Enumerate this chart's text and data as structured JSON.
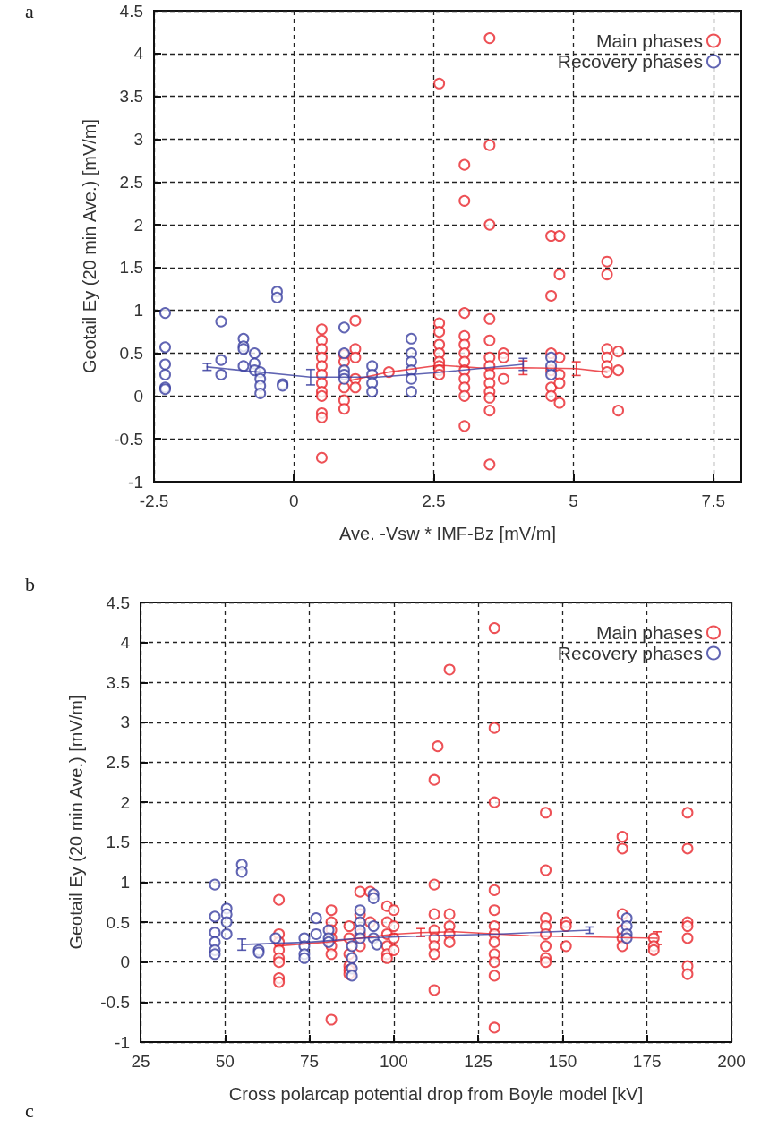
{
  "chart_data": [
    {
      "type": "scatter",
      "xlabel": "Ave. -Vsw * IMF-Bz [mV/m]",
      "ylabel": "Geotail Ey (20 min Ave.) [mV/m]",
      "annotations": [
        "a"
      ],
      "xlim": [
        -2.5,
        8
      ],
      "xticks": [
        -2.5,
        0,
        2.5,
        5,
        7.5
      ],
      "ylim": [
        -1,
        4.5
      ],
      "yticks": [
        -1,
        -0.5,
        0,
        0.5,
        1,
        1.5,
        2,
        2.5,
        3,
        3.5,
        4,
        4.5
      ],
      "grid": true,
      "legend": "top right",
      "marker": "circle",
      "series": [
        {
          "name": "Main phases",
          "color": "#e8262c",
          "x": [
            0.5,
            0.5,
            0.5,
            0.5,
            0.5,
            0.5,
            0.5,
            0.5,
            0.5,
            0.5,
            0.5,
            0.5,
            0.9,
            0.9,
            0.9,
            0.9,
            0.9,
            1.1,
            1.1,
            1.1,
            1.1,
            1.1,
            1.7,
            2.6,
            2.6,
            2.6,
            2.6,
            2.6,
            2.6,
            2.6,
            2.6,
            2.6,
            3.05,
            3.05,
            3.05,
            3.05,
            3.05,
            3.05,
            3.05,
            3.05,
            3.05,
            3.05,
            3.05,
            3.05,
            3.5,
            3.5,
            3.5,
            3.5,
            3.5,
            3.5,
            3.5,
            3.5,
            3.5,
            3.5,
            3.5,
            3.5,
            3.5,
            3.75,
            3.75,
            3.75,
            4.6,
            4.6,
            4.6,
            4.6,
            4.6,
            4.6,
            4.75,
            4.75,
            4.75,
            4.75,
            4.75,
            4.75,
            5.6,
            5.6,
            5.6,
            5.6,
            5.6,
            5.6,
            5.8,
            5.8,
            5.8
          ],
          "values": [
            0.78,
            0.65,
            0.55,
            0.45,
            0.35,
            0.25,
            0.15,
            0.05,
            0,
            -0.2,
            -0.25,
            -0.72,
            0.48,
            0.4,
            0.1,
            -0.05,
            -0.15,
            0.88,
            0.55,
            0.45,
            0.2,
            0.1,
            0.28,
            3.65,
            0.85,
            0.75,
            0.6,
            0.5,
            0.4,
            0.35,
            0.3,
            0.25,
            2.7,
            2.28,
            0.97,
            0.7,
            0.6,
            0.5,
            0.4,
            0.3,
            0.2,
            0.1,
            0,
            -0.35,
            4.18,
            2.93,
            2,
            0.9,
            0.65,
            0.45,
            0.35,
            0.25,
            0.15,
            0.05,
            -0.02,
            -0.17,
            -0.8,
            0.5,
            0.45,
            0.2,
            1.87,
            1.17,
            0.5,
            0.3,
            0.1,
            0,
            1.87,
            1.42,
            0.45,
            0.25,
            0.15,
            -0.08,
            1.57,
            1.42,
            0.55,
            0.45,
            0.35,
            0.28,
            0.52,
            0.3,
            -0.17
          ]
        },
        {
          "name": "Recovery phases",
          "color": "#3a3ea0",
          "x": [
            -2.3,
            -2.3,
            -2.3,
            -2.3,
            -2.3,
            -2.3,
            -1.3,
            -1.3,
            -1.3,
            -0.9,
            -0.9,
            -0.9,
            -0.9,
            -0.7,
            -0.7,
            -0.7,
            -0.6,
            -0.6,
            -0.6,
            -0.6,
            -0.3,
            -0.3,
            -0.2,
            -0.2,
            0.9,
            0.9,
            0.9,
            0.9,
            0.9,
            1.4,
            1.4,
            1.4,
            1.4,
            2.1,
            2.1,
            2.1,
            2.1,
            2.1,
            2.1,
            4.6,
            4.6,
            4.6
          ],
          "values": [
            0.97,
            0.57,
            0.37,
            0.25,
            0.1,
            0.08,
            0.87,
            0.42,
            0.25,
            0.67,
            0.58,
            0.55,
            0.35,
            0.5,
            0.38,
            0.3,
            0.28,
            0.2,
            0.12,
            0.03,
            1.22,
            1.15,
            0.14,
            0.12,
            0.8,
            0.5,
            0.3,
            0.25,
            0.2,
            0.35,
            0.25,
            0.15,
            0.05,
            0.67,
            0.5,
            0.4,
            0.3,
            0.2,
            0.05,
            0.45,
            0.35,
            0.25
          ]
        },
        {
          "type": "line",
          "color": "#e8262c",
          "marker": "none",
          "x": [
            1,
            1.7,
            2.6,
            3.5,
            4.1,
            5.05,
            5.6
          ],
          "values": [
            0.18,
            0.28,
            0.36,
            0.32,
            0.33,
            0.32,
            0.28
          ],
          "errors": [
            null,
            null,
            null,
            null,
            0.08,
            0.08,
            null
          ]
        },
        {
          "type": "line",
          "color": "#3a3ea0",
          "marker": "none",
          "x": [
            -1.55,
            0.3,
            1.5,
            2.5,
            4.1
          ],
          "values": [
            0.34,
            0.22,
            0.22,
            0.27,
            0.37
          ],
          "errors": [
            0.04,
            0.09,
            null,
            null,
            0.07
          ]
        }
      ]
    },
    {
      "type": "scatter",
      "xlabel": "Cross polarcap potential drop from Boyle model [kV]",
      "ylabel": "Geotail Ey (20 min Ave.) [mV/m]",
      "annotations": [
        "b",
        "c"
      ],
      "xlim": [
        25,
        200
      ],
      "xticks": [
        25,
        50,
        75,
        100,
        125,
        150,
        175,
        200
      ],
      "ylim": [
        -1,
        4.5
      ],
      "yticks": [
        -1,
        -0.5,
        0,
        0.5,
        1,
        1.5,
        2,
        2.5,
        3,
        3.5,
        4,
        4.5
      ],
      "grid": true,
      "legend": "top right",
      "marker": "circle",
      "series": [
        {
          "name": "Main phases",
          "color": "#e8262c",
          "x": [
            66,
            66,
            66,
            66,
            66,
            66,
            66,
            66,
            81.5,
            81.5,
            81.5,
            81.5,
            81.5,
            81.5,
            81.5,
            86.8,
            86.8,
            86.8,
            86.8,
            86.8,
            86.8,
            90,
            90,
            90,
            90,
            93,
            93,
            98,
            98,
            98,
            98,
            98,
            98,
            100,
            100,
            100,
            100,
            112,
            112,
            112,
            112,
            112,
            112,
            112,
            112,
            113,
            116.5,
            116.5,
            116.5,
            116.5,
            116.5,
            129.8,
            129.8,
            129.8,
            129.8,
            129.8,
            129.8,
            129.8,
            129.8,
            129.8,
            129.8,
            129.8,
            129.8,
            145,
            145,
            145,
            145,
            145,
            145,
            145,
            145,
            151,
            151,
            151,
            167.7,
            167.7,
            167.7,
            167.7,
            167.7,
            167.7,
            177,
            177,
            177,
            187,
            187,
            187,
            187,
            187,
            187,
            187
          ],
          "values": [
            0.78,
            0.35,
            0.25,
            0.15,
            0.05,
            0,
            -0.2,
            -0.25,
            0.65,
            0.5,
            0.4,
            0.3,
            0.2,
            0.1,
            -0.72,
            0.45,
            0.3,
            0.1,
            -0.05,
            -0.1,
            -0.15,
            0.88,
            0.6,
            0.35,
            0.2,
            0.88,
            0.5,
            0.7,
            0.5,
            0.35,
            0.2,
            0.1,
            0.05,
            0.65,
            0.45,
            0.3,
            0.15,
            2.28,
            0.97,
            0.6,
            0.4,
            0.3,
            0.2,
            0.1,
            -0.35,
            2.7,
            3.66,
            0.6,
            0.45,
            0.35,
            0.25,
            4.18,
            2.93,
            2,
            0.9,
            0.65,
            0.45,
            0.35,
            0.25,
            0.1,
            0,
            -0.17,
            -0.82,
            1.87,
            1.15,
            0.55,
            0.45,
            0.35,
            0.2,
            0.05,
            0,
            0.5,
            0.45,
            0.2,
            1.57,
            1.42,
            0.6,
            0.4,
            0.3,
            0.2,
            0.3,
            0.2,
            0.15,
            1.87,
            1.42,
            0.5,
            0.45,
            0.3,
            -0.05,
            -0.15
          ]
        },
        {
          "name": "Recovery phases",
          "color": "#3a3ea0",
          "x": [
            47,
            47,
            47,
            47,
            47,
            47,
            50.5,
            50.5,
            50.5,
            50.5,
            55,
            55,
            60,
            60,
            65,
            73.5,
            73.5,
            73.5,
            73.5,
            77,
            77,
            80.7,
            80.7,
            80.7,
            87.6,
            87.6,
            87.6,
            87.6,
            90,
            90,
            90,
            90,
            94,
            94,
            94,
            94,
            95,
            169,
            169,
            169,
            169
          ],
          "values": [
            0.97,
            0.57,
            0.37,
            0.25,
            0.15,
            0.1,
            0.67,
            0.6,
            0.5,
            0.35,
            1.22,
            1.13,
            0.15,
            0.12,
            0.3,
            0.3,
            0.2,
            0.1,
            0.05,
            0.55,
            0.35,
            0.4,
            0.3,
            0.25,
            0.2,
            0.05,
            -0.08,
            -0.17,
            0.65,
            0.5,
            0.4,
            0.3,
            0.85,
            0.8,
            0.45,
            0.3,
            0.22,
            0.55,
            0.45,
            0.35,
            0.3
          ]
        },
        {
          "type": "line",
          "color": "#e8262c",
          "marker": "none",
          "x": [
            65,
            80,
            100,
            108,
            118,
            140,
            178
          ],
          "values": [
            0.2,
            0.25,
            0.35,
            0.37,
            0.38,
            0.33,
            0.3
          ],
          "errors": [
            null,
            null,
            null,
            0.05,
            null,
            null,
            0.08
          ]
        },
        {
          "type": "line",
          "color": "#3a3ea0",
          "marker": "none",
          "x": [
            55,
            75,
            90,
            110,
            130,
            158
          ],
          "values": [
            0.22,
            0.25,
            0.3,
            0.33,
            0.35,
            0.4
          ],
          "errors": [
            0.07,
            null,
            null,
            null,
            null,
            0.04
          ]
        }
      ]
    }
  ]
}
